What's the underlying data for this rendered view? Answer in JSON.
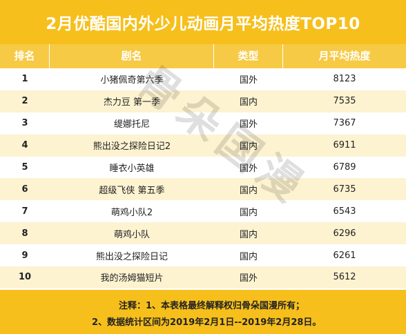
{
  "title": "2月优酷国内外少儿动画月平均热度TOP10",
  "headers": {
    "rank": "排名",
    "name": "剧名",
    "type": "类型",
    "heat": "月平均热度"
  },
  "rows": [
    {
      "rank": "1",
      "name": "小猪佩奇第六季",
      "type": "国外",
      "heat": "8123"
    },
    {
      "rank": "2",
      "name": "杰力豆 第一季",
      "type": "国内",
      "heat": "7535"
    },
    {
      "rank": "3",
      "name": "缇娜托尼",
      "type": "国外",
      "heat": "7367"
    },
    {
      "rank": "4",
      "name": "熊出没之探险日记2",
      "type": "国内",
      "heat": "6911"
    },
    {
      "rank": "5",
      "name": "睡衣小英雄",
      "type": "国外",
      "heat": "6789"
    },
    {
      "rank": "6",
      "name": "超级飞侠 第五季",
      "type": "国内",
      "heat": "6735"
    },
    {
      "rank": "7",
      "name": "萌鸡小队2",
      "type": "国内",
      "heat": "6543"
    },
    {
      "rank": "8",
      "name": "萌鸡小队",
      "type": "国内",
      "heat": "6296"
    },
    {
      "rank": "9",
      "name": "熊出没之探险日记",
      "type": "国内",
      "heat": "6261"
    },
    {
      "rank": "10",
      "name": "我的汤姆猫短片",
      "type": "国外",
      "heat": "5612"
    }
  ],
  "watermark": "骨朵国漫",
  "footer": {
    "note1": "注释：1、本表格最终解释权归骨朵国漫所有；",
    "note2": "2、数据统计区间为2019年2月1日--2019年2月28日。"
  },
  "colors": {
    "title_bg": "#f6bf1c",
    "header_bg": "#f7ca45",
    "row_alt_bg": "#fdf3d1"
  }
}
